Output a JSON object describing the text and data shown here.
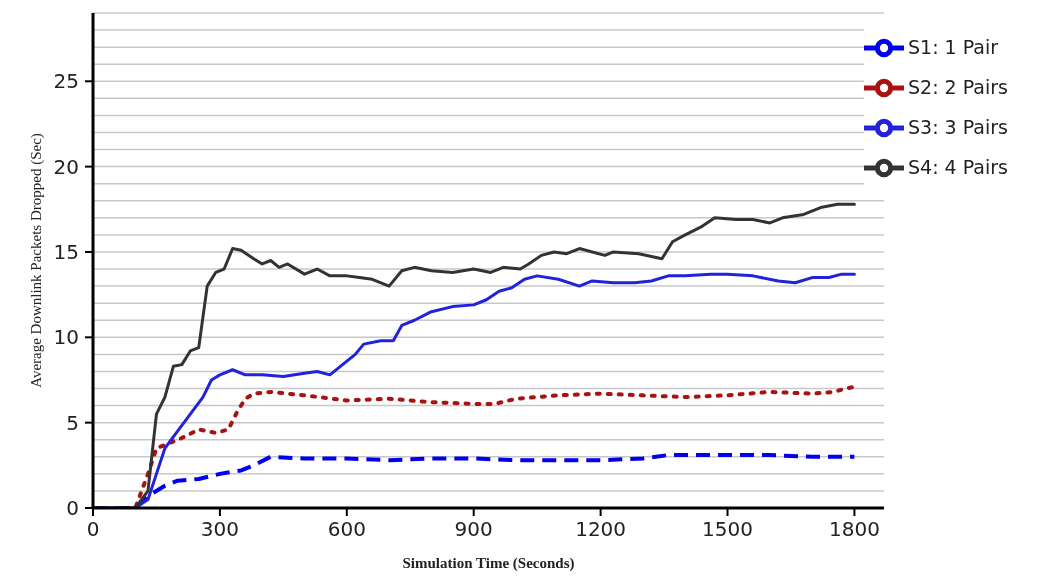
{
  "chart_data": {
    "type": "line",
    "xlabel": "Simulation Time (Seconds)",
    "ylabel": "Average Downlink Packets Dropped (Sec)",
    "xlim": [
      0,
      1870
    ],
    "xticks": [
      0,
      300,
      600,
      900,
      1200,
      1500,
      1800
    ],
    "ylim": [
      0,
      29
    ],
    "yticks": [
      0,
      {
        "value": 1,
        "label": null
      },
      {
        "value": 2,
        "label": null
      },
      {
        "value": 3,
        "label": null
      },
      {
        "value": 4,
        "label": null
      },
      5,
      {
        "value": 6,
        "label": null
      },
      {
        "value": 7,
        "label": null
      },
      {
        "value": 8,
        "label": null
      },
      {
        "value": 9,
        "label": null
      },
      10,
      {
        "value": 11,
        "label": null
      },
      {
        "value": 12,
        "label": null
      },
      {
        "value": 13,
        "label": null
      },
      {
        "value": 14,
        "label": null
      },
      15,
      {
        "value": 16,
        "label": null
      },
      {
        "value": 17,
        "label": null
      },
      {
        "value": 18,
        "label": null
      },
      {
        "value": 19,
        "label": null
      },
      20,
      {
        "value": 21,
        "label": null
      },
      {
        "value": 22,
        "label": null
      },
      {
        "value": 23,
        "label": null
      },
      {
        "value": 24,
        "label": null
      },
      25,
      {
        "value": 26,
        "label": null
      },
      {
        "value": 27,
        "label": null
      },
      {
        "value": 28,
        "label": null
      }
    ],
    "grid": "y",
    "legend": "top right",
    "marker": "none",
    "series": [
      {
        "name": "S1: 1 Pair",
        "color": "#0000ee",
        "line_style": "dashed",
        "x": [
          0,
          100,
          130,
          170,
          200,
          250,
          300,
          350,
          380,
          420,
          500,
          600,
          700,
          800,
          900,
          1000,
          1100,
          1200,
          1300,
          1360,
          1420,
          1500,
          1600,
          1700,
          1800
        ],
        "values": [
          0,
          0,
          0.7,
          1.3,
          1.6,
          1.7,
          2.0,
          2.2,
          2.5,
          3.0,
          2.9,
          2.9,
          2.8,
          2.9,
          2.9,
          2.8,
          2.8,
          2.8,
          2.9,
          3.1,
          3.1,
          3.1,
          3.1,
          3.0,
          3.0
        ]
      },
      {
        "name": "S2: 2 Pairs",
        "color": "#aa1111",
        "line_style": "dotted",
        "x": [
          0,
          100,
          130,
          150,
          180,
          210,
          250,
          290,
          320,
          340,
          360,
          380,
          420,
          500,
          600,
          700,
          800,
          900,
          950,
          1000,
          1100,
          1200,
          1300,
          1400,
          1500,
          1600,
          1700,
          1750,
          1780,
          1800
        ],
        "values": [
          0,
          0,
          2.0,
          3.5,
          3.8,
          4.1,
          4.6,
          4.4,
          4.6,
          5.6,
          6.4,
          6.7,
          6.8,
          6.6,
          6.3,
          6.4,
          6.2,
          6.1,
          6.1,
          6.4,
          6.6,
          6.7,
          6.6,
          6.5,
          6.6,
          6.8,
          6.7,
          6.8,
          7.0,
          7.1
        ]
      },
      {
        "name": "S3: 3 Pairs",
        "color": "#2222dd",
        "line_style": "solid",
        "x": [
          0,
          100,
          130,
          150,
          170,
          200,
          230,
          260,
          280,
          300,
          330,
          360,
          400,
          450,
          500,
          530,
          560,
          590,
          620,
          640,
          680,
          710,
          730,
          760,
          800,
          850,
          900,
          930,
          960,
          990,
          1020,
          1050,
          1100,
          1150,
          1180,
          1230,
          1280,
          1320,
          1360,
          1400,
          1460,
          1500,
          1560,
          1620,
          1660,
          1700,
          1740,
          1770,
          1800
        ],
        "values": [
          0,
          0,
          0.5,
          2.0,
          3.5,
          4.5,
          5.5,
          6.5,
          7.5,
          7.8,
          8.1,
          7.8,
          7.8,
          7.7,
          7.9,
          8.0,
          7.8,
          8.4,
          9.0,
          9.6,
          9.8,
          9.8,
          10.7,
          11.0,
          11.5,
          11.8,
          11.9,
          12.2,
          12.7,
          12.9,
          13.4,
          13.6,
          13.4,
          13.0,
          13.3,
          13.2,
          13.2,
          13.3,
          13.6,
          13.6,
          13.7,
          13.7,
          13.6,
          13.3,
          13.2,
          13.5,
          13.5,
          13.7,
          13.7
        ]
      },
      {
        "name": "S4: 4 Pairs",
        "color": "#333333",
        "line_style": "solid",
        "x": [
          0,
          100,
          130,
          150,
          170,
          190,
          210,
          230,
          250,
          270,
          290,
          310,
          330,
          350,
          380,
          400,
          420,
          440,
          460,
          500,
          530,
          560,
          600,
          630,
          660,
          700,
          730,
          760,
          800,
          850,
          900,
          940,
          970,
          1010,
          1030,
          1060,
          1090,
          1120,
          1150,
          1210,
          1230,
          1290,
          1345,
          1370,
          1400,
          1440,
          1470,
          1520,
          1560,
          1600,
          1630,
          1680,
          1720,
          1760,
          1800
        ],
        "values": [
          0,
          0,
          1.0,
          5.5,
          6.5,
          8.3,
          8.4,
          9.2,
          9.4,
          13.0,
          13.8,
          14.0,
          15.2,
          15.1,
          14.6,
          14.3,
          14.5,
          14.1,
          14.3,
          13.7,
          14.0,
          13.6,
          13.6,
          13.5,
          13.4,
          13.0,
          13.9,
          14.1,
          13.9,
          13.8,
          14.0,
          13.8,
          14.1,
          14.0,
          14.3,
          14.8,
          15.0,
          14.9,
          15.2,
          14.8,
          15.0,
          14.9,
          14.6,
          15.6,
          16.0,
          16.5,
          17.0,
          16.9,
          16.9,
          16.7,
          17.0,
          17.2,
          17.6,
          17.8,
          17.8
        ]
      }
    ]
  }
}
